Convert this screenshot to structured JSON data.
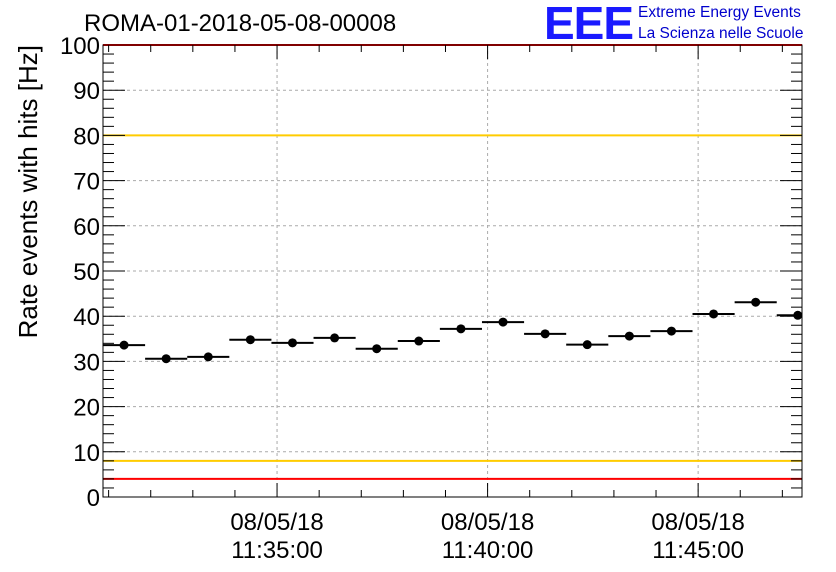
{
  "title": "ROMA-01-2018-05-08-00008",
  "logo": {
    "mark": "EEE",
    "line1": "Extreme Energy Events",
    "line2": "La Scienza nelle Scuole"
  },
  "colors": {
    "red_limit": "#ff0000",
    "yellow_limit": "#ffcc00",
    "logo_blue": "#1a1aff",
    "marker": "#000000"
  },
  "chart_data": {
    "type": "scatter",
    "title": "ROMA-01-2018-05-08-00008",
    "xlabel": "",
    "ylabel": "Rate events with hits [Hz]",
    "ylim": [
      0,
      100
    ],
    "yticks": [
      0,
      10,
      20,
      30,
      40,
      50,
      60,
      70,
      80,
      90,
      100
    ],
    "xlim": [
      "2018-05-08 11:30:52",
      "2018-05-08 11:47:28"
    ],
    "xticks": [
      {
        "time": "2018-05-08 11:35:00",
        "date_label": "08/05/18",
        "time_label": "11:35:00"
      },
      {
        "time": "2018-05-08 11:40:00",
        "date_label": "08/05/18",
        "time_label": "11:40:00"
      },
      {
        "time": "2018-05-08 11:45:00",
        "date_label": "08/05/18",
        "time_label": "11:45:00"
      }
    ],
    "grid": true,
    "bin_width_seconds": 60,
    "x": [
      "2018-05-08 11:31:22",
      "2018-05-08 11:32:22",
      "2018-05-08 11:33:22",
      "2018-05-08 11:34:22",
      "2018-05-08 11:35:22",
      "2018-05-08 11:36:22",
      "2018-05-08 11:37:22",
      "2018-05-08 11:38:22",
      "2018-05-08 11:39:22",
      "2018-05-08 11:40:22",
      "2018-05-08 11:41:22",
      "2018-05-08 11:42:22",
      "2018-05-08 11:43:22",
      "2018-05-08 11:44:22",
      "2018-05-08 11:45:22",
      "2018-05-08 11:46:22",
      "2018-05-08 11:47:22"
    ],
    "values": [
      33.6,
      30.6,
      31.0,
      34.8,
      34.1,
      35.2,
      32.8,
      34.5,
      37.2,
      38.7,
      36.1,
      33.7,
      35.6,
      36.7,
      40.5,
      43.1,
      40.2
    ],
    "reference_lines": [
      {
        "y": 100,
        "color": "#ff0000"
      },
      {
        "y": 80,
        "color": "#ffcc00"
      },
      {
        "y": 8,
        "color": "#ffcc00"
      },
      {
        "y": 4,
        "color": "#ff0000"
      }
    ]
  }
}
